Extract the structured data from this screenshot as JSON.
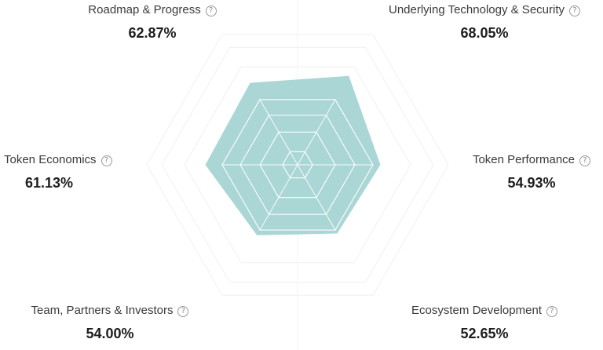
{
  "chart_data": {
    "type": "radar",
    "categories": [
      "Underlying Technology & Security",
      "Token Performance",
      "Ecosystem Development",
      "Team, Partners & Investors",
      "Token Economics",
      "Roadmap & Progress"
    ],
    "series": [
      {
        "values": [
          68.05,
          54.93,
          52.65,
          54.0,
          61.13,
          62.87
        ]
      }
    ],
    "value_labels": [
      "68.05%",
      "54.93%",
      "52.65%",
      "54.00%",
      "61.13%",
      "62.87%"
    ],
    "rlim": [
      0,
      100
    ],
    "fill_color": "#9ccfcf",
    "grid_color": "#f0f0f0"
  },
  "help_icon": "?"
}
